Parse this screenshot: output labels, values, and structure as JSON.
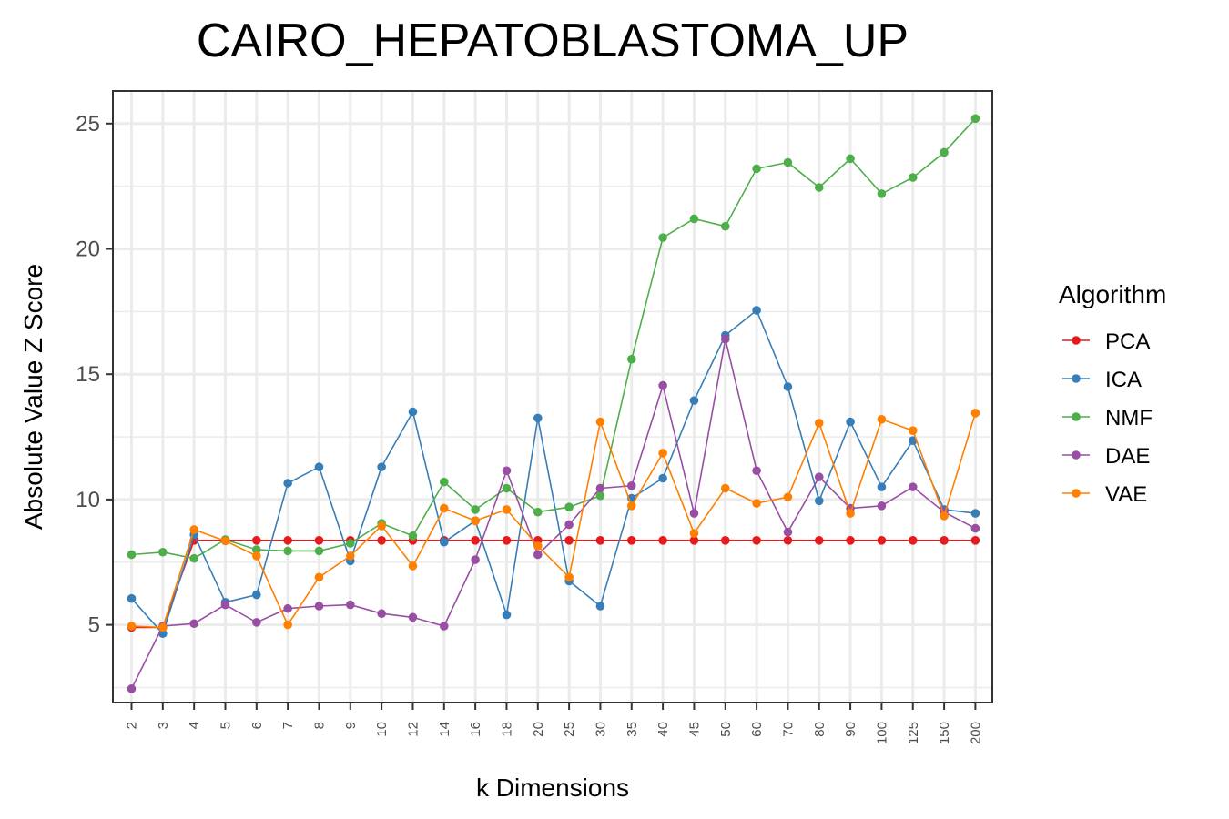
{
  "chart_data": {
    "type": "line",
    "title": "CAIRO_HEPATOBLASTOMA_UP",
    "xlabel": "k Dimensions",
    "ylabel": "Absolute Value Z Score",
    "categories": [
      "2",
      "3",
      "4",
      "5",
      "6",
      "7",
      "8",
      "9",
      "10",
      "12",
      "14",
      "16",
      "18",
      "20",
      "25",
      "30",
      "35",
      "40",
      "45",
      "50",
      "60",
      "70",
      "80",
      "90",
      "100",
      "125",
      "150",
      "200"
    ],
    "ylim": [
      1.9,
      26.3
    ],
    "yticks": [
      5,
      10,
      15,
      20,
      25
    ],
    "grid": true,
    "legend": {
      "title": "Algorithm",
      "position": "right"
    },
    "series": [
      {
        "name": "PCA",
        "color": "#e41a1c",
        "values": [
          4.9,
          4.9,
          8.37,
          8.37,
          8.37,
          8.37,
          8.37,
          8.37,
          8.37,
          8.37,
          8.37,
          8.37,
          8.37,
          8.37,
          8.37,
          8.37,
          8.37,
          8.37,
          8.37,
          8.37,
          8.37,
          8.37,
          8.37,
          8.37,
          8.37,
          8.37,
          8.37,
          8.37
        ]
      },
      {
        "name": "ICA",
        "color": "#377eb8",
        "values": [
          6.05,
          4.65,
          8.6,
          5.9,
          6.2,
          10.65,
          11.3,
          7.55,
          11.3,
          13.5,
          8.3,
          9.15,
          5.4,
          13.25,
          6.75,
          5.75,
          10.05,
          10.85,
          13.95,
          16.55,
          17.55,
          14.5,
          9.95,
          13.1,
          10.5,
          12.35,
          9.6,
          9.45
        ]
      },
      {
        "name": "NMF",
        "color": "#4daf4a",
        "values": [
          7.8,
          7.9,
          7.65,
          8.4,
          8.0,
          7.95,
          7.95,
          8.25,
          9.05,
          8.55,
          10.7,
          9.6,
          10.45,
          9.5,
          9.7,
          10.15,
          15.6,
          20.45,
          21.2,
          20.9,
          23.2,
          23.45,
          22.45,
          23.6,
          22.2,
          22.85,
          23.85,
          25.2
        ]
      },
      {
        "name": "DAE",
        "color": "#984ea3",
        "values": [
          2.45,
          4.95,
          5.05,
          5.8,
          5.1,
          5.65,
          5.75,
          5.8,
          5.45,
          5.3,
          4.95,
          7.6,
          11.15,
          7.8,
          9.0,
          10.45,
          10.55,
          14.55,
          9.45,
          16.4,
          11.15,
          8.7,
          10.9,
          9.65,
          9.75,
          10.5,
          9.5,
          8.85
        ]
      },
      {
        "name": "VAE",
        "color": "#ff7f00",
        "values": [
          4.95,
          4.9,
          8.8,
          8.35,
          7.75,
          5.0,
          6.9,
          7.75,
          8.95,
          7.35,
          9.65,
          9.15,
          9.6,
          8.15,
          6.9,
          13.1,
          9.75,
          11.85,
          8.65,
          10.45,
          9.85,
          10.1,
          13.05,
          9.45,
          13.2,
          12.75,
          9.35,
          13.45
        ]
      }
    ]
  }
}
